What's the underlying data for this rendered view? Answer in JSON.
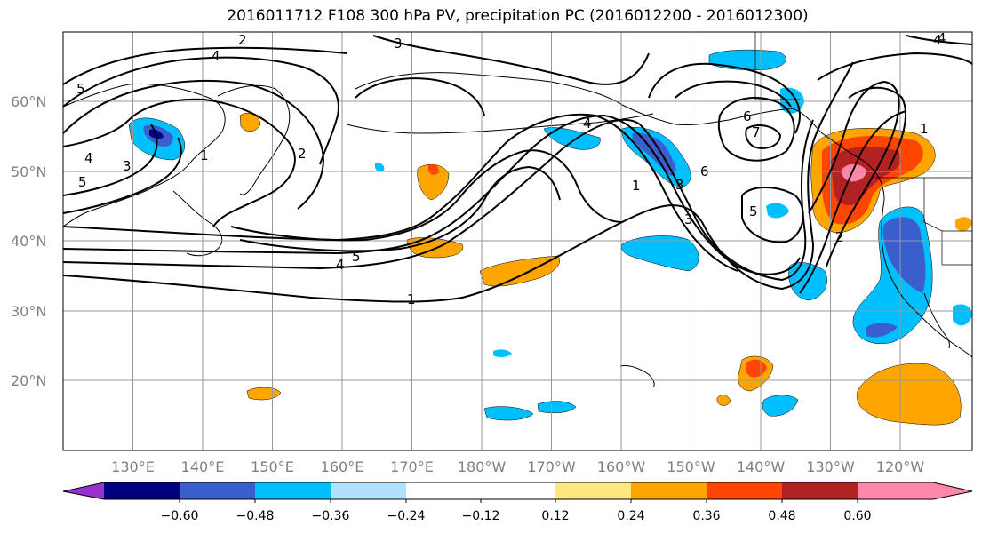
{
  "title": "2016011712 F108 300 hPa PV, precipitation PC (2016012200 - 2016012300)",
  "map": {
    "lat_labels": [
      "60°N",
      "50°N",
      "40°N",
      "30°N",
      "20°N"
    ],
    "lon_labels": [
      "130°E",
      "140°E",
      "150°E",
      "160°E",
      "170°E",
      "180°W",
      "170°W",
      "160°W",
      "150°W",
      "140°W",
      "130°W",
      "120°W"
    ],
    "contour_labels": [
      "5",
      "3",
      "4",
      "4",
      "2",
      "1",
      "4",
      "5",
      "3",
      "2",
      "1",
      "4",
      "6",
      "7",
      "6",
      "3",
      "1",
      "3",
      "5",
      "5",
      "4",
      "1",
      "2",
      "4"
    ],
    "fill_colors": {
      "orange": "#ffa500",
      "light_orange": "#ffe680",
      "red_orange": "#ff4500",
      "dark_red": "#b22222",
      "pink": "#ff88aa",
      "deep_sky_blue": "#00bfff",
      "light_blue": "#b2e0ff",
      "royal_blue": "#3a5fcd",
      "navy": "#000080",
      "purple": "#9932cc"
    }
  },
  "colorbar": {
    "colors": [
      "#9932cc",
      "#000080",
      "#3a5fcd",
      "#00bfff",
      "#b2e0ff",
      "#ffffff",
      "#ffe680",
      "#ffa500",
      "#ff4500",
      "#b22222",
      "#ff88aa"
    ],
    "tick_labels": [
      "−0.60",
      "−0.48",
      "−0.36",
      "−0.24",
      "−0.12",
      "0.12",
      "0.24",
      "0.36",
      "0.48",
      "0.60"
    ]
  }
}
